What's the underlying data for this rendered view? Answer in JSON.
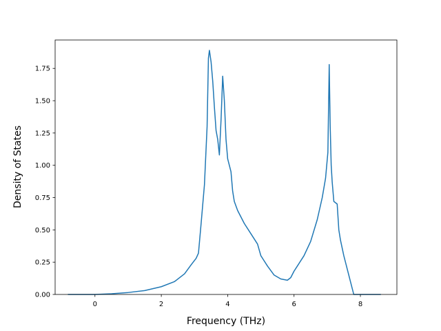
{
  "chart_data": {
    "type": "line",
    "title": "",
    "xlabel": "Frequency (THz)",
    "ylabel": "Density of States",
    "xlim": [
      -1.2,
      9.1
    ],
    "ylim": [
      0.0,
      1.97
    ],
    "grid": false,
    "x_ticks": [
      0,
      2,
      4,
      6,
      8
    ],
    "x_tick_labels": [
      "0",
      "2",
      "4",
      "6",
      "8"
    ],
    "y_ticks": [
      0.0,
      0.25,
      0.5,
      0.75,
      1.0,
      1.25,
      1.5,
      1.75
    ],
    "y_tick_labels": [
      "0.00",
      "0.25",
      "0.50",
      "0.75",
      "1.00",
      "1.25",
      "1.50",
      "1.75"
    ],
    "line_color": "#1f77b4",
    "series": [
      {
        "x": [
          -0.8,
          0.0,
          0.5,
          1.0,
          1.5,
          2.0,
          2.4,
          2.7,
          2.9,
          3.05,
          3.12,
          3.2,
          3.3,
          3.38,
          3.42,
          3.45,
          3.5,
          3.55,
          3.6,
          3.65,
          3.7,
          3.75,
          3.8,
          3.85,
          3.9,
          3.95,
          4.0,
          4.05,
          4.1,
          4.15,
          4.2,
          4.3,
          4.4,
          4.5,
          4.7,
          4.9,
          5.0,
          5.2,
          5.4,
          5.6,
          5.8,
          5.9,
          6.0,
          6.1,
          6.3,
          6.5,
          6.7,
          6.85,
          6.95,
          7.02,
          7.06,
          7.09,
          7.12,
          7.15,
          7.2,
          7.25,
          7.3,
          7.35,
          7.4,
          7.5,
          7.6,
          7.7,
          7.75,
          7.8,
          7.9,
          8.6
        ],
        "y": [
          0.0,
          0.0,
          0.005,
          0.015,
          0.03,
          0.06,
          0.1,
          0.16,
          0.23,
          0.28,
          0.32,
          0.55,
          0.85,
          1.3,
          1.83,
          1.89,
          1.8,
          1.65,
          1.45,
          1.27,
          1.2,
          1.08,
          1.35,
          1.69,
          1.5,
          1.2,
          1.05,
          1.0,
          0.95,
          0.8,
          0.72,
          0.65,
          0.6,
          0.55,
          0.47,
          0.39,
          0.3,
          0.22,
          0.15,
          0.12,
          0.11,
          0.13,
          0.18,
          0.22,
          0.3,
          0.41,
          0.58,
          0.75,
          0.9,
          1.1,
          1.78,
          1.3,
          1.0,
          0.87,
          0.72,
          0.71,
          0.7,
          0.5,
          0.42,
          0.3,
          0.2,
          0.1,
          0.05,
          0.0,
          0.0,
          0.0
        ]
      }
    ]
  }
}
